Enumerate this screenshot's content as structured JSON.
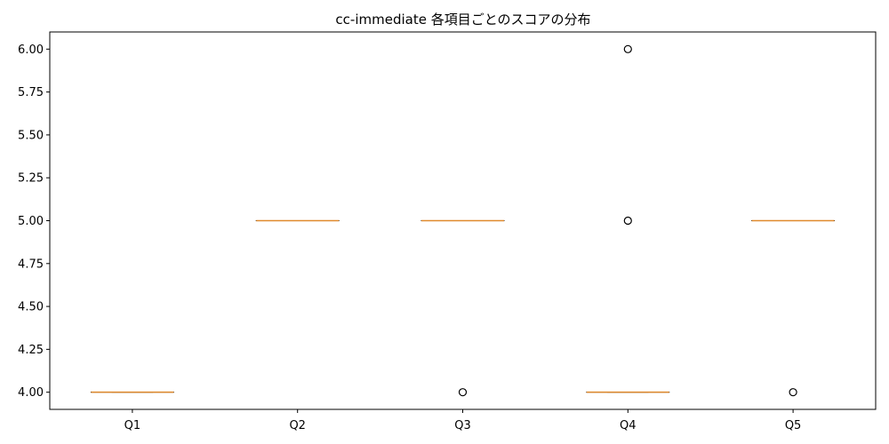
{
  "chart_data": {
    "type": "box",
    "title": "cc-immediate 各項目ごとのスコアの分布",
    "xlabel": "",
    "ylabel": "",
    "categories": [
      "Q1",
      "Q2",
      "Q3",
      "Q4",
      "Q5"
    ],
    "ylim": [
      3.9,
      6.1
    ],
    "yticks": [
      "4.00",
      "4.25",
      "4.50",
      "4.75",
      "5.00",
      "5.25",
      "5.50",
      "5.75",
      "6.00"
    ],
    "grid": false,
    "boxes": [
      {
        "category": "Q1",
        "q1": 4,
        "median": 4,
        "q3": 4,
        "whisker_low": 4,
        "whisker_high": 4,
        "outliers": []
      },
      {
        "category": "Q2",
        "q1": 5,
        "median": 5,
        "q3": 5,
        "whisker_low": 5,
        "whisker_high": 5,
        "outliers": []
      },
      {
        "category": "Q3",
        "q1": 5,
        "median": 5,
        "q3": 5,
        "whisker_low": 5,
        "whisker_high": 5,
        "outliers": [
          4
        ]
      },
      {
        "category": "Q4",
        "q1": 4,
        "median": 4,
        "q3": 4,
        "whisker_low": 4,
        "whisker_high": 4,
        "outliers": [
          5,
          6
        ]
      },
      {
        "category": "Q5",
        "q1": 5,
        "median": 5,
        "q3": 5,
        "whisker_low": 5,
        "whisker_high": 5,
        "outliers": [
          4
        ]
      }
    ],
    "colors": {
      "box": "#000000",
      "median": "#e08a2c",
      "outlier": "#000000"
    }
  }
}
